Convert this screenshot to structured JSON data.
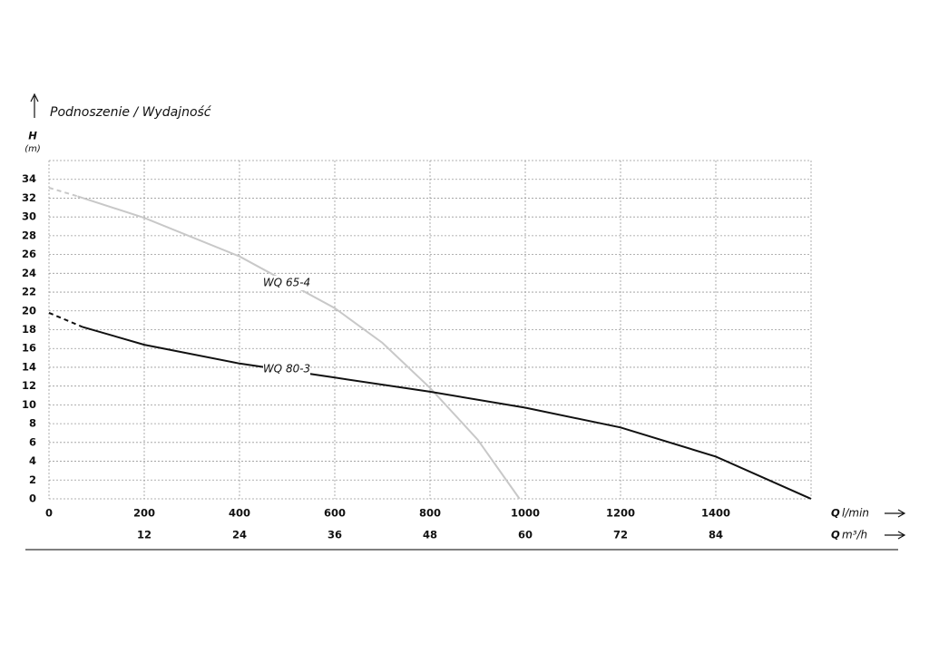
{
  "chart_data": {
    "type": "line",
    "title": "Podnoszenie / Wydajność",
    "y_label": "H",
    "y_unit": "(m)",
    "x_label": {
      "symbol": "Q",
      "unit": "l/min"
    },
    "x2_label": {
      "symbol": "Q",
      "unit": "m³/h"
    },
    "xlim": [
      0,
      1600
    ],
    "xticks": [
      0,
      200,
      400,
      600,
      800,
      1000,
      1200,
      1400
    ],
    "x2lim": [
      0,
      96
    ],
    "x2ticks": [
      12,
      24,
      36,
      48,
      60,
      72,
      84
    ],
    "ylim": [
      0,
      36
    ],
    "yticks": [
      0,
      2,
      4,
      6,
      8,
      10,
      12,
      14,
      16,
      18,
      20,
      22,
      24,
      26,
      28,
      30,
      32,
      34
    ],
    "grid": true,
    "series": [
      {
        "name": "WQ 65-4",
        "color": "#c8c8c8",
        "dash_first_segment": true,
        "x": [
          0,
          60,
          200,
          400,
          600,
          700,
          800,
          900,
          988
        ],
        "values": [
          33.1,
          32.2,
          29.9,
          25.8,
          20.3,
          16.6,
          11.8,
          6.3,
          0
        ]
      },
      {
        "name": "WQ 80-3",
        "color": "#111111",
        "dash_first_segment": true,
        "x": [
          0,
          70,
          200,
          400,
          600,
          800,
          1000,
          1200,
          1400,
          1600
        ],
        "values": [
          19.8,
          18.3,
          16.4,
          14.4,
          12.9,
          11.4,
          9.7,
          7.6,
          4.5,
          0
        ]
      }
    ]
  }
}
